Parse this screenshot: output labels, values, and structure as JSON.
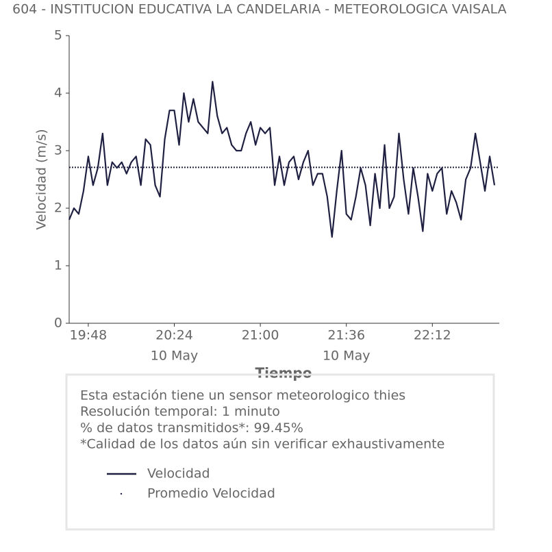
{
  "chart_data": {
    "type": "line",
    "title": "604 - INSTITUCION EDUCATIVA LA CANDELARIA - METEOROLOGICA VAISALA",
    "xlabel": "Tiempo",
    "ylabel": "Velocidad (m/s)",
    "x": [
      "19:40",
      "19:42",
      "19:44",
      "19:46",
      "19:48",
      "19:50",
      "19:52",
      "19:54",
      "19:56",
      "19:58",
      "20:00",
      "20:02",
      "20:04",
      "20:06",
      "20:08",
      "20:10",
      "20:12",
      "20:14",
      "20:16",
      "20:18",
      "20:20",
      "20:22",
      "20:24",
      "20:26",
      "20:28",
      "20:30",
      "20:32",
      "20:34",
      "20:36",
      "20:38",
      "20:40",
      "20:42",
      "20:44",
      "20:46",
      "20:48",
      "20:50",
      "20:52",
      "20:54",
      "20:56",
      "20:58",
      "21:00",
      "21:02",
      "21:04",
      "21:06",
      "21:08",
      "21:10",
      "21:12",
      "21:14",
      "21:16",
      "21:18",
      "21:20",
      "21:22",
      "21:24",
      "21:26",
      "21:28",
      "21:30",
      "21:32",
      "21:34",
      "21:36",
      "21:38",
      "21:40",
      "21:42",
      "21:44",
      "21:46",
      "21:48",
      "21:50",
      "21:52",
      "21:54",
      "21:56",
      "21:58",
      "22:00",
      "22:02",
      "22:04",
      "22:06",
      "22:08",
      "22:10",
      "22:12",
      "22:14",
      "22:16",
      "22:18",
      "22:20",
      "22:22",
      "22:24",
      "22:26",
      "22:28",
      "22:30",
      "22:32",
      "22:34",
      "22:36",
      "22:38"
    ],
    "series": [
      {
        "name": "Velocidad",
        "color": "#1f2041",
        "values": [
          1.8,
          2.0,
          1.9,
          2.3,
          2.9,
          2.4,
          2.7,
          3.3,
          2.4,
          2.8,
          2.7,
          2.8,
          2.6,
          2.8,
          2.9,
          2.4,
          3.2,
          3.1,
          2.4,
          2.2,
          3.2,
          3.7,
          3.7,
          3.1,
          4.0,
          3.5,
          3.9,
          3.5,
          3.4,
          3.3,
          4.2,
          3.6,
          3.3,
          3.4,
          3.1,
          3.0,
          3.0,
          3.3,
          3.5,
          3.1,
          3.4,
          3.3,
          3.4,
          2.4,
          2.9,
          2.4,
          2.8,
          2.9,
          2.5,
          2.8,
          3.0,
          2.4,
          2.6,
          2.6,
          2.2,
          1.5,
          2.3,
          3.0,
          1.9,
          1.8,
          2.2,
          2.7,
          2.4,
          1.7,
          2.6,
          2.0,
          3.1,
          2.0,
          2.2,
          3.3,
          2.5,
          1.9,
          2.7,
          2.2,
          1.6,
          2.6,
          2.3,
          2.6,
          2.7,
          1.9,
          2.3,
          2.1,
          1.8,
          2.5,
          2.7,
          3.3,
          2.8,
          2.3,
          2.9,
          2.4
        ]
      }
    ],
    "hline": {
      "name": "Promedio Velocidad",
      "value": 2.71,
      "color": "#1f2041"
    },
    "xlim": [
      "19:40",
      "22:40"
    ],
    "xticks": [
      "19:48",
      "20:24",
      "21:00",
      "21:36",
      "22:12"
    ],
    "xtick_dates": [
      null,
      "10 May",
      null,
      "10 May",
      null
    ],
    "ylim": [
      0,
      5
    ],
    "yticks": [
      0,
      1,
      2,
      3,
      4,
      5
    ],
    "notes": [
      "Esta estación tiene un sensor meteorologico thies",
      "Resolución temporal: 1 minuto",
      "% de datos transmitidos*: 99.45%",
      "*Calidad de los datos aún sin verificar exhaustivamente"
    ]
  }
}
